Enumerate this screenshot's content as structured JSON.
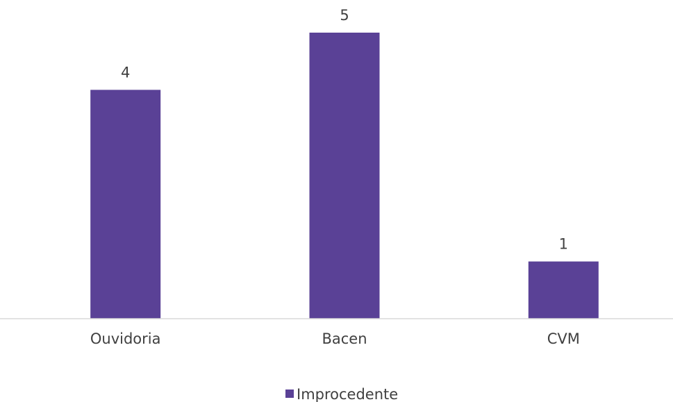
{
  "chart_data": {
    "type": "bar",
    "categories": [
      "Ouvidoria",
      "Bacen",
      "CVM"
    ],
    "series": [
      {
        "name": "Improcedente",
        "values": [
          4,
          5,
          1
        ],
        "color": "#5a4196"
      }
    ],
    "data_labels": [
      "4",
      "5",
      "1"
    ],
    "ylim": [
      0,
      5
    ],
    "grid": false,
    "legend": {
      "position": "bottom",
      "entries": [
        "Improcedente"
      ]
    },
    "axis_color": "#d9d9d9",
    "text_color": "#404040"
  }
}
